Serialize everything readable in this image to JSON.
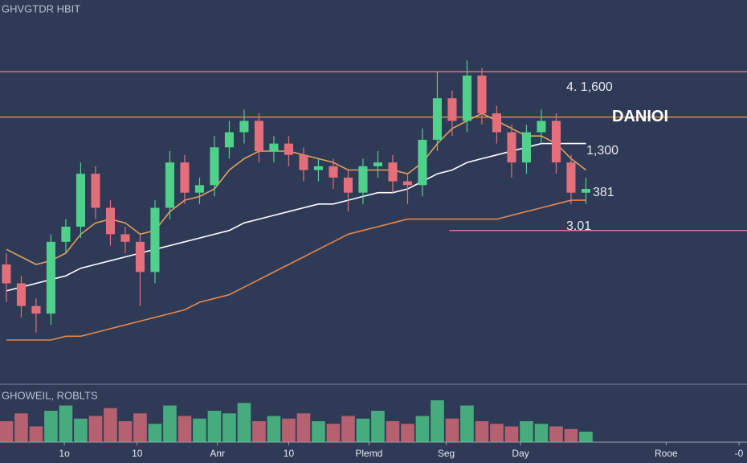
{
  "chart_data": {
    "type": "candlestick",
    "title": "GHVGTDR HBIT",
    "volume_label": "GHOWEIL, ROBLTS",
    "open": [
      30,
      25,
      19,
      17,
      36,
      40,
      54,
      45,
      38,
      36,
      28,
      45,
      57,
      49,
      51,
      61,
      65,
      68,
      60,
      62,
      59,
      55,
      56,
      53,
      49,
      56,
      57,
      52,
      51,
      63,
      74,
      68,
      80,
      70,
      65,
      57,
      65,
      68,
      57,
      49
    ],
    "high": [
      33,
      27,
      21,
      38,
      42,
      57,
      56,
      47,
      40,
      38,
      47,
      60,
      59,
      53,
      64,
      68,
      71,
      70,
      64,
      64,
      61,
      58,
      58,
      55,
      58,
      60,
      59,
      54,
      66,
      81,
      76,
      84,
      82,
      72,
      67,
      67,
      71,
      70,
      59,
      53
    ],
    "low": [
      20,
      16,
      12,
      14,
      33,
      37,
      42,
      35,
      33,
      19,
      25,
      42,
      46,
      46,
      48,
      58,
      62,
      57,
      57,
      56,
      52,
      52,
      50,
      44,
      46,
      53,
      49,
      46,
      48,
      60,
      64,
      65,
      67,
      62,
      53,
      54,
      62,
      54,
      46,
      46
    ],
    "close": [
      25,
      19,
      17,
      36,
      40,
      54,
      45,
      38,
      36,
      28,
      45,
      57,
      49,
      51,
      61,
      65,
      68,
      60,
      62,
      59,
      55,
      56,
      53,
      49,
      56,
      57,
      52,
      51,
      63,
      74,
      68,
      80,
      70,
      65,
      57,
      65,
      68,
      57,
      49,
      50
    ],
    "volume": [
      40,
      55,
      30,
      60,
      70,
      45,
      50,
      65,
      40,
      55,
      35,
      70,
      50,
      45,
      60,
      55,
      75,
      40,
      50,
      45,
      55,
      40,
      35,
      50,
      45,
      60,
      40,
      35,
      50,
      80,
      45,
      70,
      40,
      35,
      30,
      40,
      35,
      30,
      25,
      20
    ],
    "up_color": "#4fd18b",
    "down_color": "#e46f7a",
    "ylim": [
      0,
      100
    ],
    "volume_ylim": [
      0,
      100
    ],
    "xlim": [
      -0.43,
      49.84
    ],
    "xticks": [
      {
        "value": 3.9,
        "label": "1o"
      },
      {
        "value": 8.8,
        "label": "10"
      },
      {
        "value": 14.2,
        "label": "Anr"
      },
      {
        "value": 19,
        "label": "10"
      },
      {
        "value": 24.4,
        "label": "Plemd"
      },
      {
        "value": 29.6,
        "label": "Seg"
      },
      {
        "value": 34.6,
        "label": "Day"
      },
      {
        "value": 44.4,
        "label": "Rooe"
      },
      {
        "value": 49.3,
        "label": "-0"
      }
    ],
    "moving_averages": [
      {
        "color": "#ffffff",
        "values": [
          23,
          24,
          25,
          26,
          27,
          29,
          30,
          31,
          32,
          33,
          34,
          35,
          36,
          37,
          38,
          39,
          41,
          42,
          43,
          44,
          45,
          46,
          46,
          47,
          48,
          49,
          49,
          50,
          52,
          54,
          55,
          57,
          58,
          59,
          60,
          61,
          62,
          62,
          62,
          62
        ]
      },
      {
        "color": "#e3a15c",
        "values": [
          34,
          32,
          30,
          31,
          33,
          38,
          41,
          42,
          41,
          38,
          39,
          44,
          47,
          48,
          50,
          55,
          58,
          60,
          60,
          60,
          59,
          58,
          57,
          55,
          55,
          55,
          55,
          54,
          57,
          62,
          66,
          68,
          70,
          68,
          66,
          64,
          64,
          62,
          58,
          55
        ]
      },
      {
        "color": "#e8874a",
        "values": [
          10,
          10,
          10,
          10,
          11,
          11,
          12,
          13,
          14,
          15,
          16,
          17,
          18,
          20,
          21,
          22,
          24,
          26,
          28,
          30,
          32,
          34,
          36,
          38,
          39,
          40,
          41,
          42,
          42,
          42,
          42,
          42,
          42,
          42,
          43,
          44,
          45,
          46,
          47,
          47
        ]
      }
    ],
    "hlines": [
      {
        "value": 81,
        "color": "#d9808e"
      },
      {
        "value": 69,
        "color": "#e8923f"
      },
      {
        "value": 39,
        "color": "#e07a90",
        "start": 29.8
      }
    ],
    "annotations": [
      {
        "text": "4. 1,600",
        "y": 73
      },
      {
        "text": "DANIOI",
        "y": 69
      },
      {
        "text": "1,300",
        "y": 60
      },
      {
        "text": "381",
        "y": 49
      },
      {
        "text": "3.01",
        "y": 40
      }
    ]
  }
}
